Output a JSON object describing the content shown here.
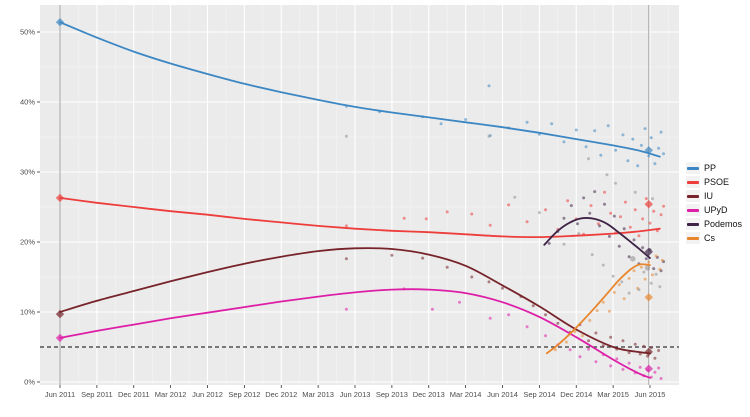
{
  "figure": {
    "background": "#ffffff",
    "panel_background": "#ebebeb",
    "grid_color": "#ffffff",
    "axis_text_color": "#4d4d4d",
    "tick_mark_color": "#333333"
  },
  "legend": {
    "position": "right"
  },
  "chart_data": {
    "type": "scatter",
    "title": "",
    "xlabel": "",
    "ylabel": "",
    "x_axis": {
      "tick_labels": [
        "Jun 2011",
        "Sep 2011",
        "Dec 2011",
        "Mar 2012",
        "Jun 2012",
        "Sep 2012",
        "Dec 2012",
        "Mar 2013",
        "Jun 2013",
        "Sep 2013",
        "Dec 2013",
        "Mar 2014",
        "Jun 2014",
        "Sep 2014",
        "Dec 2014",
        "Mar 2015",
        "Jun 2015"
      ],
      "tick_months": [
        0,
        3,
        6,
        9,
        12,
        15,
        18,
        21,
        24,
        27,
        30,
        33,
        36,
        39,
        42,
        45,
        48
      ],
      "months_range": [
        -1.6,
        50.4
      ]
    },
    "y_axis": {
      "tick_labels": [
        "0%",
        "10%",
        "20%",
        "30%",
        "40%",
        "50%"
      ],
      "tick_values": [
        0,
        10,
        20,
        30,
        40,
        50
      ],
      "range": [
        -0.5,
        53.9
      ]
    },
    "threshold_line": {
      "value": 5,
      "style": "dashed",
      "color": "#333333"
    },
    "event_lines": {
      "months": [
        0,
        47.9
      ],
      "color": "#a6a6a6"
    },
    "series": [
      {
        "name": "PP",
        "color": "#3c87c3",
        "trend": [
          [
            0,
            51.4
          ],
          [
            3,
            49.2
          ],
          [
            6,
            47.2
          ],
          [
            9,
            45.5
          ],
          [
            12,
            44.0
          ],
          [
            15,
            42.6
          ],
          [
            18,
            41.4
          ],
          [
            21,
            40.3
          ],
          [
            24,
            39.3
          ],
          [
            27,
            38.5
          ],
          [
            30,
            37.8
          ],
          [
            33,
            37.1
          ],
          [
            36,
            36.4
          ],
          [
            39,
            35.6
          ],
          [
            42,
            34.7
          ],
          [
            45,
            33.8
          ],
          [
            47,
            33.1
          ],
          [
            48.8,
            32.2
          ]
        ],
        "points": [
          [
            23.3,
            39.4
          ],
          [
            26,
            38.6
          ],
          [
            29.5,
            37.9
          ],
          [
            31,
            36.9
          ],
          [
            33,
            37.5
          ],
          [
            34.9,
            42.3
          ],
          [
            35,
            35.2
          ],
          [
            36.5,
            36.3
          ],
          [
            38,
            37.1
          ],
          [
            39,
            35.4
          ],
          [
            40,
            36.9
          ],
          [
            41,
            34.3
          ],
          [
            42,
            36.0
          ],
          [
            42.8,
            33.6
          ],
          [
            43.5,
            35.9
          ],
          [
            44,
            32.4
          ],
          [
            44.6,
            36.6
          ],
          [
            45.2,
            33.1
          ],
          [
            45.8,
            35.3
          ],
          [
            46.2,
            31.6
          ],
          [
            46.6,
            34.7
          ],
          [
            47,
            30.9
          ],
          [
            47.3,
            33.8
          ],
          [
            47.6,
            36.2
          ],
          [
            47.9,
            32.3
          ],
          [
            48.1,
            34.9
          ],
          [
            48.4,
            31.2
          ],
          [
            48.7,
            33.4
          ],
          [
            48.9,
            35.7
          ],
          [
            49.1,
            32.6
          ]
        ],
        "elections": [
          [
            0,
            51.4
          ],
          [
            47.9,
            33.1
          ]
        ]
      },
      {
        "name": "PSOE",
        "color": "#ed3e3c",
        "trend": [
          [
            0,
            26.3
          ],
          [
            3,
            25.6
          ],
          [
            6,
            25.0
          ],
          [
            9,
            24.4
          ],
          [
            12,
            23.9
          ],
          [
            15,
            23.3
          ],
          [
            18,
            22.8
          ],
          [
            21,
            22.3
          ],
          [
            24,
            21.9
          ],
          [
            27,
            21.6
          ],
          [
            30,
            21.4
          ],
          [
            33,
            21.1
          ],
          [
            36,
            20.8
          ],
          [
            39,
            20.7
          ],
          [
            42,
            20.9
          ],
          [
            45,
            21.2
          ],
          [
            47,
            21.5
          ],
          [
            48.8,
            21.9
          ]
        ],
        "points": [
          [
            23.3,
            22.3
          ],
          [
            28,
            23.4
          ],
          [
            29.8,
            23.3
          ],
          [
            31.5,
            24.3
          ],
          [
            33.5,
            24.0
          ],
          [
            35,
            22.4
          ],
          [
            36.5,
            25.3
          ],
          [
            38,
            22.9
          ],
          [
            39.5,
            24.6
          ],
          [
            40.5,
            21.8
          ],
          [
            41.3,
            25.9
          ],
          [
            42,
            23.3
          ],
          [
            42.6,
            21.1
          ],
          [
            43.2,
            25.2
          ],
          [
            43.8,
            22.6
          ],
          [
            44.3,
            27.1
          ],
          [
            44.8,
            24.1
          ],
          [
            45.2,
            21.3
          ],
          [
            45.6,
            23.6
          ],
          [
            46,
            25.7
          ],
          [
            46.4,
            22.1
          ],
          [
            46.8,
            24.6
          ],
          [
            47.1,
            20.9
          ],
          [
            47.4,
            23.3
          ],
          [
            47.7,
            26.2
          ],
          [
            48,
            22.7
          ],
          [
            48.3,
            24.4
          ],
          [
            48.6,
            21.6
          ],
          [
            48.9,
            23.9
          ],
          [
            49.1,
            25.1
          ]
        ],
        "elections": [
          [
            0,
            26.3
          ],
          [
            47.9,
            25.4
          ]
        ]
      },
      {
        "name": "IU",
        "color": "#77232a",
        "trend": [
          [
            0,
            10.0
          ],
          [
            3,
            11.6
          ],
          [
            6,
            13.0
          ],
          [
            9,
            14.4
          ],
          [
            12,
            15.7
          ],
          [
            15,
            16.9
          ],
          [
            18,
            17.9
          ],
          [
            21,
            18.7
          ],
          [
            24,
            19.1
          ],
          [
            27,
            19.0
          ],
          [
            30,
            18.2
          ],
          [
            33,
            16.6
          ],
          [
            36,
            13.8
          ],
          [
            39,
            10.8
          ],
          [
            42,
            7.5
          ],
          [
            45,
            5.0
          ],
          [
            47,
            4.3
          ],
          [
            48,
            4.1
          ]
        ],
        "points": [
          [
            23.3,
            17.6
          ],
          [
            27,
            18.1
          ],
          [
            29.5,
            17.7
          ],
          [
            31.5,
            16.4
          ],
          [
            33.5,
            15.0
          ],
          [
            34.9,
            14.3
          ],
          [
            36,
            13.4
          ],
          [
            37.5,
            12.2
          ],
          [
            38.5,
            10.9
          ],
          [
            39.5,
            9.6
          ],
          [
            40.5,
            8.4
          ],
          [
            41.5,
            7.1
          ],
          [
            42.3,
            8.2
          ],
          [
            43,
            5.9
          ],
          [
            43.6,
            7.0
          ],
          [
            44.2,
            5.2
          ],
          [
            44.8,
            6.4
          ],
          [
            45.3,
            4.7
          ],
          [
            45.8,
            5.9
          ],
          [
            46.3,
            4.2
          ],
          [
            46.8,
            5.4
          ],
          [
            47.2,
            4.0
          ],
          [
            47.5,
            5.1
          ],
          [
            47.8,
            3.7
          ],
          [
            48.1,
            4.9
          ],
          [
            48.4,
            3.4
          ],
          [
            48.7,
            4.5
          ]
        ],
        "elections": [
          [
            0,
            9.7
          ],
          [
            47.9,
            4.3
          ]
        ]
      },
      {
        "name": "UPyD",
        "color": "#dd1fa8",
        "trend": [
          [
            0,
            6.3
          ],
          [
            3,
            7.3
          ],
          [
            6,
            8.2
          ],
          [
            9,
            9.1
          ],
          [
            12,
            9.9
          ],
          [
            15,
            10.7
          ],
          [
            18,
            11.5
          ],
          [
            21,
            12.2
          ],
          [
            24,
            12.8
          ],
          [
            27,
            13.2
          ],
          [
            30,
            13.2
          ],
          [
            33,
            12.7
          ],
          [
            36,
            11.4
          ],
          [
            39,
            9.3
          ],
          [
            42,
            6.4
          ],
          [
            45,
            3.2
          ],
          [
            47,
            1.3
          ],
          [
            48,
            0.6
          ]
        ],
        "points": [
          [
            23.3,
            10.4
          ],
          [
            28,
            13.3
          ],
          [
            30.3,
            10.4
          ],
          [
            32.5,
            11.4
          ],
          [
            35,
            9.1
          ],
          [
            36.5,
            9.6
          ],
          [
            38,
            7.9
          ],
          [
            39.5,
            6.6
          ],
          [
            40.5,
            5.3
          ],
          [
            41.5,
            4.6
          ],
          [
            42.3,
            3.6
          ],
          [
            43,
            4.7
          ],
          [
            43.6,
            2.9
          ],
          [
            44.2,
            3.9
          ],
          [
            44.8,
            2.3
          ],
          [
            45.3,
            3.3
          ],
          [
            45.8,
            1.8
          ],
          [
            46.3,
            2.7
          ],
          [
            46.8,
            1.3
          ],
          [
            47.2,
            2.1
          ],
          [
            47.5,
            0.9
          ],
          [
            47.8,
            1.7
          ],
          [
            48.1,
            0.7
          ],
          [
            48.4,
            1.4
          ],
          [
            48.7,
            2.0
          ],
          [
            48.9,
            0.5
          ]
        ],
        "elections": [
          [
            0,
            6.3
          ],
          [
            47.9,
            1.9
          ]
        ]
      },
      {
        "name": "Podemos",
        "color": "#3f2347",
        "trend": [
          [
            39.4,
            19.6
          ],
          [
            40.5,
            21.6
          ],
          [
            41.5,
            22.8
          ],
          [
            42.5,
            23.4
          ],
          [
            43.5,
            23.3
          ],
          [
            44.5,
            22.6
          ],
          [
            45.5,
            21.3
          ],
          [
            46.5,
            19.9
          ],
          [
            47.2,
            18.9
          ],
          [
            48,
            17.7
          ]
        ],
        "points": [
          [
            39.8,
            19.8
          ],
          [
            40.5,
            21.5
          ],
          [
            41,
            23.4
          ],
          [
            41.6,
            25.2
          ],
          [
            42.1,
            22.6
          ],
          [
            42.6,
            26.3
          ],
          [
            43.1,
            24.1
          ],
          [
            43.5,
            27.2
          ],
          [
            43.9,
            22.3
          ],
          [
            44.3,
            25.4
          ],
          [
            44.7,
            20.8
          ],
          [
            45.1,
            23.7
          ],
          [
            45.5,
            19.4
          ],
          [
            45.9,
            21.9
          ],
          [
            46.3,
            17.9
          ],
          [
            46.7,
            20.3
          ],
          [
            47.1,
            16.9
          ],
          [
            47.4,
            19.2
          ],
          [
            47.7,
            17.6
          ],
          [
            48,
            18.9
          ],
          [
            48.3,
            16.2
          ],
          [
            48.6,
            17.8
          ],
          [
            48.9,
            15.9
          ],
          [
            49.1,
            17.2
          ]
        ],
        "elections": [
          [
            47.9,
            18.6
          ]
        ]
      },
      {
        "name": "Cs",
        "color": "#e8862d",
        "trend": [
          [
            39.6,
            4.1
          ],
          [
            40.5,
            5.3
          ],
          [
            41.5,
            6.9
          ],
          [
            42.5,
            8.7
          ],
          [
            43.5,
            10.6
          ],
          [
            44.5,
            12.6
          ],
          [
            45.5,
            14.6
          ],
          [
            46.5,
            16.2
          ],
          [
            47.2,
            16.8
          ],
          [
            48,
            16.7
          ]
        ],
        "points": [
          [
            40.3,
            4.6
          ],
          [
            41.2,
            5.7
          ],
          [
            41.9,
            7.2
          ],
          [
            42.5,
            6.6
          ],
          [
            43.1,
            8.8
          ],
          [
            43.7,
            10.2
          ],
          [
            44.2,
            11.4
          ],
          [
            44.7,
            10.1
          ],
          [
            45.1,
            12.8
          ],
          [
            45.5,
            13.9
          ],
          [
            45.9,
            11.9
          ],
          [
            46.3,
            14.8
          ],
          [
            46.7,
            15.9
          ],
          [
            47,
            13.4
          ],
          [
            47.3,
            16.4
          ],
          [
            47.6,
            14.7
          ],
          [
            47.9,
            17.1
          ],
          [
            48.2,
            15.3
          ],
          [
            48.5,
            18.0
          ],
          [
            48.8,
            16.1
          ],
          [
            49,
            17.4
          ]
        ],
        "elections": [
          [
            47.9,
            12.1
          ]
        ]
      }
    ],
    "other_points": {
      "color": "#8f8f8f",
      "points": [
        [
          23.3,
          35.1
        ],
        [
          34.9,
          35.1
        ],
        [
          37,
          26.4
        ],
        [
          39,
          24.2
        ],
        [
          41,
          19.7
        ],
        [
          42.2,
          21.2
        ],
        [
          43,
          31.9
        ],
        [
          43.3,
          18.2
        ],
        [
          44.2,
          16.7
        ],
        [
          44.5,
          29.6
        ],
        [
          45,
          15.1
        ],
        [
          45.2,
          28.4
        ],
        [
          45.7,
          14.3
        ],
        [
          46.3,
          12.7
        ],
        [
          46.6,
          17.6,
          1
        ],
        [
          46.8,
          27.1
        ],
        [
          47.1,
          13.2
        ],
        [
          47.5,
          15.7
        ],
        [
          47.8,
          16.3,
          1
        ],
        [
          48.1,
          14.1
        ],
        [
          48.2,
          26.2
        ],
        [
          48.5,
          15.4
        ],
        [
          48.8,
          13.6
        ]
      ]
    }
  }
}
